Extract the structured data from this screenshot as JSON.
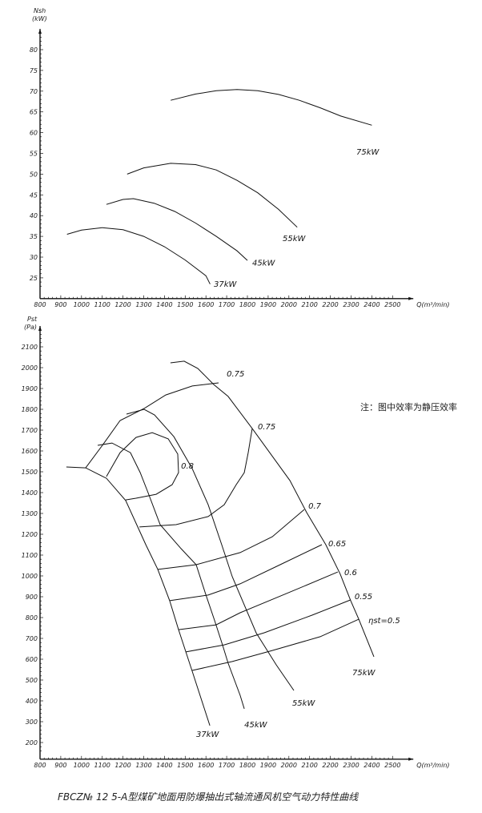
{
  "caption": "FBCZ№ 12 5-A型煤矿地面用防爆抽出式轴流通风机空气动力特性曲线",
  "note": "注：图中效率为静压效率",
  "chart_data": [
    {
      "type": "line",
      "ylabel": "Nsh",
      "yunit": "(kW)",
      "xlabel": "Q(m³/min)",
      "xlim": [
        800,
        2600
      ],
      "ylim": [
        20,
        85
      ],
      "xticks": [
        800,
        900,
        1000,
        1100,
        1200,
        1300,
        1400,
        1500,
        1600,
        1700,
        1800,
        1900,
        2000,
        2100,
        2200,
        2300,
        2400,
        2500
      ],
      "yticks": [
        25,
        30,
        35,
        40,
        45,
        50,
        55,
        60,
        65,
        70,
        75,
        80
      ],
      "grid": false,
      "series": [
        {
          "name": "37kW",
          "label_at": [
            1638,
            23.4
          ],
          "points": [
            [
              930,
              35.5
            ],
            [
              1000,
              36.5
            ],
            [
              1100,
              37.1
            ],
            [
              1200,
              36.6
            ],
            [
              1300,
              35.0
            ],
            [
              1400,
              32.5
            ],
            [
              1500,
              29.3
            ],
            [
              1600,
              25.5
            ],
            [
              1620,
              23.5
            ]
          ]
        },
        {
          "name": "45kW",
          "label_at": [
            1823,
            28.6
          ],
          "points": [
            [
              1120,
              42.7
            ],
            [
              1200,
              43.9
            ],
            [
              1250,
              44.1
            ],
            [
              1350,
              43.0
            ],
            [
              1450,
              41.0
            ],
            [
              1550,
              38.2
            ],
            [
              1650,
              35.0
            ],
            [
              1750,
              31.5
            ],
            [
              1800,
              29.2
            ]
          ]
        },
        {
          "name": "55kW",
          "label_at": [
            1970,
            34.4
          ],
          "points": [
            [
              1220,
              50
            ],
            [
              1300,
              51.5
            ],
            [
              1430,
              52.6
            ],
            [
              1550,
              52.3
            ],
            [
              1650,
              51
            ],
            [
              1750,
              48.5
            ],
            [
              1850,
              45.5
            ],
            [
              1950,
              41.5
            ],
            [
              2040,
              37.2
            ]
          ]
        },
        {
          "name": "75kW",
          "label_at": [
            2325,
            55.3
          ],
          "points": [
            [
              1430,
              67.8
            ],
            [
              1550,
              69.3
            ],
            [
              1650,
              70.1
            ],
            [
              1750,
              70.4
            ],
            [
              1850,
              70.1
            ],
            [
              1950,
              69.2
            ],
            [
              2050,
              67.8
            ],
            [
              2150,
              66
            ],
            [
              2250,
              64
            ],
            [
              2400,
              61.8
            ]
          ]
        }
      ]
    },
    {
      "type": "line",
      "ylabel": "Pst",
      "yunit": "(Pa)",
      "xlabel": "Q(m³/min)",
      "xlim": [
        800,
        2600
      ],
      "ylim": [
        120,
        2200
      ],
      "xticks": [
        800,
        900,
        1000,
        1100,
        1200,
        1300,
        1400,
        1500,
        1600,
        1700,
        1800,
        1900,
        2000,
        2100,
        2200,
        2300,
        2400,
        2500
      ],
      "yticks": [
        200,
        300,
        400,
        500,
        600,
        700,
        800,
        900,
        1000,
        1100,
        1200,
        1300,
        1400,
        1500,
        1600,
        1700,
        1800,
        1900,
        2000,
        2100
      ],
      "grid": false,
      "series": [
        {
          "name": "37kW",
          "label_at": [
            1553,
            239
          ],
          "points": [
            [
              927,
              1523
            ],
            [
              1020,
              1519
            ],
            [
              1120,
              1469
            ],
            [
              1213,
              1362
            ],
            [
              1275,
              1227
            ],
            [
              1310,
              1150
            ],
            [
              1368,
              1031
            ],
            [
              1425,
              881
            ],
            [
              1468,
              742
            ],
            [
              1534,
              542
            ],
            [
              1619,
              281
            ]
          ]
        },
        {
          "name": "45kW",
          "label_at": [
            1785,
            285
          ],
          "points": [
            [
              1078,
              1627
            ],
            [
              1147,
              1638
            ],
            [
              1236,
              1592
            ],
            [
              1283,
              1496
            ],
            [
              1321,
              1400
            ],
            [
              1379,
              1246
            ],
            [
              1480,
              1131
            ],
            [
              1553,
              1054
            ],
            [
              1599,
              912
            ],
            [
              1642,
              785
            ],
            [
              1680,
              669
            ],
            [
              1707,
              581
            ],
            [
              1765,
              427
            ],
            [
              1785,
              362
            ]
          ]
        },
        {
          "name": "55kW",
          "label_at": [
            2016,
            389
          ],
          "points": [
            [
              1217,
              1777
            ],
            [
              1302,
              1800
            ],
            [
              1352,
              1773
            ],
            [
              1445,
              1669
            ],
            [
              1534,
              1515
            ],
            [
              1611,
              1342
            ],
            [
              1676,
              1150
            ],
            [
              1727,
              996
            ],
            [
              1842,
              727
            ],
            [
              1939,
              573
            ],
            [
              2024,
              450
            ]
          ]
        },
        {
          "name": "75kW",
          "label_at": [
            2306,
            535
          ],
          "points": [
            [
              1429,
              2023
            ],
            [
              1495,
              2031
            ],
            [
              1561,
              1996
            ],
            [
              1638,
              1919
            ],
            [
              1707,
              1862
            ],
            [
              1823,
              1708
            ],
            [
              2005,
              1458
            ],
            [
              2086,
              1304
            ],
            [
              2178,
              1150
            ],
            [
              2248,
              1008
            ],
            [
              2298,
              881
            ],
            [
              2337,
              792
            ],
            [
              2410,
              612
            ]
          ]
        }
      ],
      "efficiency_contours": [
        {
          "label": "0.8",
          "label_at": [
            1480,
            1527
          ],
          "points": [
            [
              1120,
              1477
            ],
            [
              1186,
              1592
            ],
            [
              1263,
              1665
            ],
            [
              1341,
              1688
            ],
            [
              1418,
              1658
            ],
            [
              1464,
              1585
            ],
            [
              1468,
              1496
            ],
            [
              1437,
              1438
            ],
            [
              1360,
              1392
            ],
            [
              1263,
              1373
            ],
            [
              1213,
              1365
            ]
          ]
        },
        {
          "label": "0.75",
          "label_at": [
            1700,
            1969
          ],
          "points": [
            [
              1020,
              1519
            ],
            [
              1109,
              1638
            ],
            [
              1186,
              1746
            ],
            [
              1302,
              1804
            ],
            [
              1406,
              1869
            ],
            [
              1534,
              1912
            ],
            [
              1661,
              1927
            ]
          ]
        },
        {
          "label": "0.75",
          "label_at": [
            1850,
            1715
          ],
          "points": [
            [
              1279,
              1235
            ],
            [
              1456,
              1246
            ],
            [
              1611,
              1285
            ],
            [
              1688,
              1342
            ],
            [
              1746,
              1438
            ],
            [
              1785,
              1496
            ],
            [
              1804,
              1592
            ],
            [
              1823,
              1708
            ]
          ]
        },
        {
          "label": "0.7",
          "label_at": [
            2094,
            1335
          ],
          "points": [
            [
              1368,
              1031
            ],
            [
              1553,
              1054
            ],
            [
              1765,
              1112
            ],
            [
              1920,
              1188
            ],
            [
              2074,
              1319
            ]
          ]
        },
        {
          "label": "0.65",
          "label_at": [
            2190,
            1154
          ],
          "points": [
            [
              1425,
              881
            ],
            [
              1611,
              908
            ],
            [
              1765,
              962
            ],
            [
              1958,
              1054
            ],
            [
              2159,
              1150
            ]
          ]
        },
        {
          "label": "0.6",
          "label_at": [
            2267,
            1015
          ],
          "points": [
            [
              1468,
              742
            ],
            [
              1649,
              765
            ],
            [
              1765,
              823
            ],
            [
              1997,
              919
            ],
            [
              2236,
              1019
            ]
          ]
        },
        {
          "label": "0.55",
          "label_at": [
            2317,
            900
          ],
          "points": [
            [
              1503,
              635
            ],
            [
              1688,
              669
            ],
            [
              1881,
              727
            ],
            [
              2113,
              812
            ],
            [
              2298,
              885
            ]
          ]
        },
        {
          "label": "ηst=0.5",
          "label_at": [
            2383,
            785
          ],
          "points": [
            [
              1534,
              546
            ],
            [
              1727,
              589
            ],
            [
              1920,
              642
            ],
            [
              2151,
              708
            ],
            [
              2337,
              792
            ]
          ]
        }
      ]
    }
  ]
}
